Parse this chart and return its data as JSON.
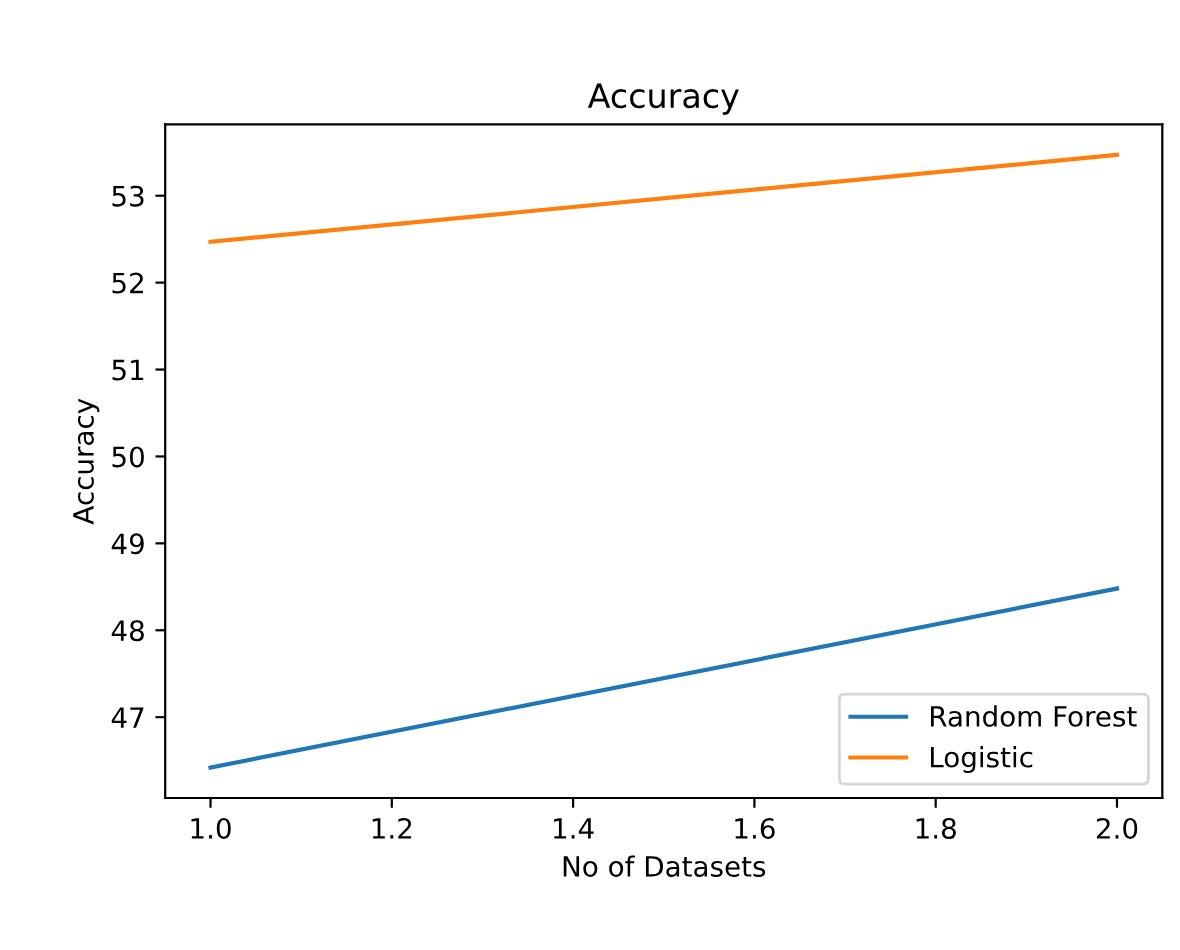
{
  "chart_data": {
    "type": "line",
    "title": "Accuracy",
    "xlabel": "No of Datasets",
    "ylabel": "Accuracy",
    "x": [
      1.0,
      2.0
    ],
    "series": [
      {
        "name": "Random Forest",
        "color": "#1f77b4",
        "values": [
          46.42,
          48.48
        ]
      },
      {
        "name": "Logistic",
        "color": "#ff7f0e",
        "values": [
          52.47,
          53.47
        ]
      }
    ],
    "xlim": [
      0.95,
      2.05
    ],
    "ylim": [
      46.07,
      53.82
    ],
    "xticks": [
      {
        "value": 1.0,
        "label": "1.0"
      },
      {
        "value": 1.2,
        "label": "1.2"
      },
      {
        "value": 1.4,
        "label": "1.4"
      },
      {
        "value": 1.6,
        "label": "1.6"
      },
      {
        "value": 1.8,
        "label": "1.8"
      },
      {
        "value": 2.0,
        "label": "2.0"
      }
    ],
    "yticks": [
      47,
      48,
      49,
      50,
      51,
      52,
      53
    ],
    "legend": "lower right",
    "grid": false,
    "marker": "none",
    "line_style": "solid"
  }
}
